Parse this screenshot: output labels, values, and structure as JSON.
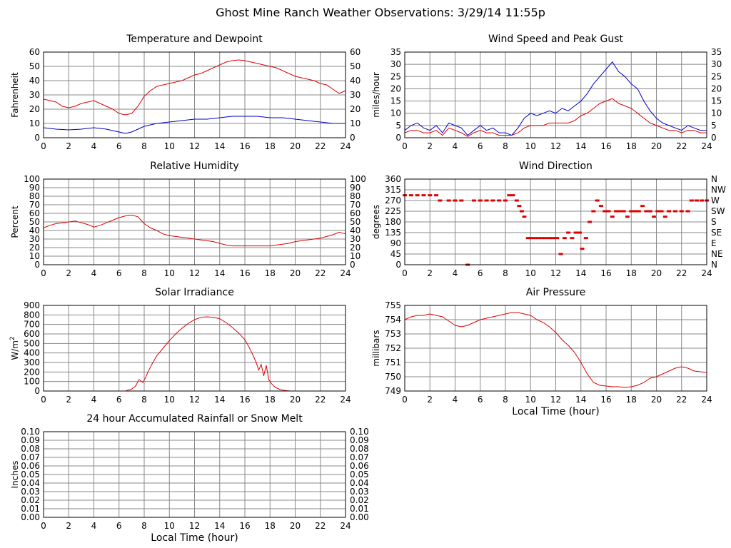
{
  "page": {
    "title": "Ghost Mine Ranch Weather Observations: 3/29/14 11:55p"
  },
  "colors": {
    "red": "#e00000",
    "blue": "#0000c8",
    "grid": "#888888",
    "frame": "#000000",
    "background": "#ffffff"
  },
  "chart_data": [
    {
      "id": "temperature",
      "type": "line",
      "title": "Temperature and Dewpoint",
      "ylabel": "Fahrenheit",
      "xlabel": "",
      "xlim": [
        0,
        24
      ],
      "ylim": [
        0,
        60
      ],
      "x_ticks": [
        "0",
        "2",
        "4",
        "6",
        "8",
        "10",
        "12",
        "14",
        "16",
        "18",
        "20",
        "22",
        "24"
      ],
      "y_ticks_left": [
        "0",
        "10",
        "20",
        "30",
        "40",
        "50",
        "60"
      ],
      "y_ticks_right": [
        "0",
        "10",
        "20",
        "30",
        "40",
        "50",
        "60"
      ],
      "grid": true,
      "series": [
        {
          "color": "#e00000",
          "x": [
            0,
            0.5,
            1,
            1.5,
            2,
            2.5,
            3,
            3.5,
            4,
            4.5,
            5,
            5.5,
            6,
            6.5,
            7,
            7.5,
            8,
            8.5,
            9,
            9.5,
            10,
            10.5,
            11,
            11.5,
            12,
            12.5,
            13,
            13.5,
            14,
            14.5,
            15,
            15.5,
            16,
            16.5,
            17,
            17.5,
            18,
            18.5,
            19,
            19.5,
            20,
            20.5,
            21,
            21.5,
            22,
            22.5,
            23,
            23.5,
            24
          ],
          "values": [
            27,
            26,
            25,
            22,
            21,
            22,
            24,
            25,
            26,
            24,
            22,
            20,
            17,
            16,
            17,
            22,
            29,
            33,
            36,
            37,
            38,
            39,
            40,
            42,
            44,
            45,
            47,
            49,
            51,
            53,
            54,
            54.5,
            54,
            53,
            52,
            51,
            50,
            49,
            47,
            45,
            43,
            42,
            41,
            40,
            38,
            37,
            34,
            31,
            33
          ]
        },
        {
          "color": "#0000c8",
          "x": [
            0,
            1,
            2,
            3,
            4,
            5,
            6,
            6.5,
            7,
            7.5,
            8,
            9,
            10,
            11,
            12,
            13,
            14,
            15,
            16,
            17,
            18,
            19,
            20,
            21,
            22,
            23,
            24
          ],
          "values": [
            7,
            6,
            5.5,
            6,
            7,
            6,
            4,
            3,
            4,
            6,
            8,
            10,
            11,
            12,
            13,
            13,
            14,
            15,
            15,
            15,
            14,
            14,
            13,
            12,
            11,
            10,
            10
          ]
        }
      ]
    },
    {
      "id": "wind-speed",
      "type": "line",
      "title": "Wind Speed and Peak Gust",
      "ylabel": "miles/hour",
      "xlabel": "",
      "xlim": [
        0,
        24
      ],
      "ylim": [
        0,
        35
      ],
      "x_ticks": [
        "0",
        "2",
        "4",
        "6",
        "8",
        "10",
        "12",
        "14",
        "16",
        "18",
        "20",
        "22",
        "24"
      ],
      "y_ticks_left": [
        "0",
        "5",
        "10",
        "15",
        "20",
        "25",
        "30",
        "35"
      ],
      "y_ticks_right": [
        "0",
        "5",
        "10",
        "15",
        "20",
        "25",
        "30",
        "35"
      ],
      "grid": true,
      "series": [
        {
          "color": "#0000c8",
          "x": [
            0,
            0.5,
            1,
            1.5,
            2,
            2.5,
            3,
            3.5,
            4,
            4.5,
            5,
            5.5,
            6,
            6.5,
            7,
            7.5,
            8,
            8.5,
            9,
            9.5,
            10,
            10.5,
            11,
            11.5,
            12,
            12.5,
            13,
            13.5,
            14,
            14.5,
            15,
            15.5,
            16,
            16.5,
            17,
            17.5,
            18,
            18.5,
            19,
            19.5,
            20,
            20.5,
            21,
            21.5,
            22,
            22.5,
            23,
            23.5,
            24
          ],
          "values": [
            3,
            5,
            6,
            4,
            3,
            5,
            2,
            6,
            5,
            4,
            1,
            3,
            5,
            3,
            4,
            2,
            2,
            1,
            4,
            8,
            10,
            9,
            10,
            11,
            10,
            12,
            11,
            13,
            15,
            18,
            22,
            25,
            28,
            31,
            27,
            25,
            22,
            20,
            15,
            11,
            8,
            6,
            5,
            4,
            3,
            5,
            4,
            3,
            3
          ]
        },
        {
          "color": "#e00000",
          "x": [
            0,
            0.5,
            1,
            1.5,
            2,
            2.5,
            3,
            3.5,
            4,
            4.5,
            5,
            5.5,
            6,
            6.5,
            7,
            7.5,
            8,
            8.5,
            9,
            9.5,
            10,
            10.5,
            11,
            11.5,
            12,
            12.5,
            13,
            13.5,
            14,
            14.5,
            15,
            15.5,
            16,
            16.5,
            17,
            17.5,
            18,
            18.5,
            19,
            19.5,
            20,
            20.5,
            21,
            21.5,
            22,
            22.5,
            23,
            23.5,
            24
          ],
          "values": [
            2,
            3,
            3,
            2,
            2,
            3,
            1,
            4,
            3,
            2,
            0.5,
            2,
            3,
            2,
            2,
            1,
            1,
            1,
            2,
            4,
            5,
            5,
            5,
            6,
            6,
            6,
            6,
            7,
            9,
            10,
            12,
            14,
            15,
            16,
            14,
            13,
            12,
            10,
            8,
            6,
            5,
            4,
            3,
            3,
            2,
            3,
            3,
            2,
            2
          ]
        }
      ]
    },
    {
      "id": "humidity",
      "type": "line",
      "title": "Relative Humidity",
      "ylabel": "Percent",
      "xlabel": "",
      "xlim": [
        0,
        24
      ],
      "ylim": [
        0,
        100
      ],
      "x_ticks": [
        "0",
        "2",
        "4",
        "6",
        "8",
        "10",
        "12",
        "14",
        "16",
        "18",
        "20",
        "22",
        "24"
      ],
      "y_ticks_left": [
        "0",
        "10",
        "20",
        "30",
        "40",
        "50",
        "60",
        "70",
        "80",
        "90",
        "100"
      ],
      "y_ticks_right": [
        "0",
        "10",
        "20",
        "30",
        "40",
        "50",
        "60",
        "70",
        "80",
        "90",
        "100"
      ],
      "grid": true,
      "series": [
        {
          "color": "#e00000",
          "x": [
            0,
            0.5,
            1,
            1.5,
            2,
            2.5,
            3,
            3.5,
            4,
            4.5,
            5,
            5.5,
            6,
            6.5,
            7,
            7.5,
            8,
            8.5,
            9,
            9.5,
            10,
            10.5,
            11,
            11.5,
            12,
            12.5,
            13,
            13.5,
            14,
            14.5,
            15,
            15.5,
            16,
            16.5,
            17,
            17.5,
            18,
            18.5,
            19,
            19.5,
            20,
            20.5,
            21,
            21.5,
            22,
            22.5,
            23,
            23.5,
            24
          ],
          "values": [
            43,
            46,
            48,
            49,
            50,
            51,
            49,
            47,
            44,
            46,
            49,
            52,
            55,
            57,
            58,
            56,
            48,
            43,
            40,
            36,
            34,
            33,
            32,
            31,
            30,
            29,
            28,
            27,
            25,
            23,
            22,
            22,
            22,
            22,
            22,
            22,
            22,
            23,
            24,
            25,
            27,
            28,
            29,
            30,
            31,
            33,
            35,
            38,
            36
          ]
        }
      ]
    },
    {
      "id": "wind-direction",
      "type": "scatter",
      "title": "Wind Direction",
      "ylabel": "degrees",
      "xlabel": "",
      "xlim": [
        0,
        24
      ],
      "ylim": [
        0,
        360
      ],
      "x_ticks": [
        "0",
        "2",
        "4",
        "6",
        "8",
        "10",
        "12",
        "14",
        "16",
        "18",
        "20",
        "22",
        "24"
      ],
      "y_ticks_left": [
        "0",
        "45",
        "90",
        "135",
        "180",
        "225",
        "270",
        "315",
        "360"
      ],
      "y_ticks_right": [
        "N",
        "NE",
        "E",
        "SE",
        "S",
        "SW",
        "W",
        "NW",
        "N"
      ],
      "grid": true,
      "series": [
        {
          "color": "#e00000",
          "x": [
            0,
            0.5,
            1,
            1.5,
            2,
            2.5,
            2.8,
            3.5,
            4,
            4.5,
            5,
            5.5,
            6,
            6.5,
            7,
            7.5,
            8,
            8.3,
            8.6,
            8.9,
            9.1,
            9.3,
            9.5,
            9.8,
            10,
            10.3,
            10.6,
            10.9,
            11.2,
            11.5,
            11.8,
            12.1,
            12.4,
            12.7,
            13,
            13.3,
            13.6,
            13.9,
            14.1,
            14.4,
            14.7,
            15,
            15.3,
            15.6,
            15.9,
            16.2,
            16.5,
            16.8,
            17.1,
            17.4,
            17.7,
            18,
            18.3,
            18.6,
            18.9,
            19.2,
            19.5,
            19.8,
            20.1,
            20.4,
            20.7,
            21,
            21.5,
            22,
            22.5,
            22.8,
            23.2,
            23.6,
            24
          ],
          "values": [
            292,
            292,
            292,
            292,
            292,
            292,
            270,
            270,
            270,
            270,
            0,
            270,
            270,
            270,
            270,
            270,
            270,
            292,
            292,
            270,
            247,
            225,
            202,
            112,
            112,
            112,
            112,
            112,
            112,
            112,
            112,
            112,
            45,
            112,
            135,
            112,
            135,
            135,
            67,
            112,
            180,
            225,
            270,
            247,
            225,
            225,
            202,
            225,
            225,
            225,
            202,
            225,
            225,
            225,
            247,
            225,
            225,
            202,
            225,
            225,
            202,
            225,
            225,
            225,
            225,
            270,
            270,
            270,
            270
          ]
        }
      ]
    },
    {
      "id": "solar",
      "type": "line",
      "title": "Solar Irradiance",
      "ylabel": "W/m",
      "ylabel_superscript": "2",
      "xlabel": "",
      "xlim": [
        0,
        24
      ],
      "ylim": [
        0,
        900
      ],
      "x_ticks": [
        "0",
        "2",
        "4",
        "6",
        "8",
        "10",
        "12",
        "14",
        "16",
        "18",
        "20",
        "22",
        "24"
      ],
      "y_ticks_left": [
        "0",
        "100",
        "200",
        "300",
        "400",
        "500",
        "600",
        "700",
        "800",
        "900"
      ],
      "y_ticks_right": [],
      "grid": true,
      "series": [
        {
          "color": "#e00000",
          "x": [
            0,
            6.5,
            7,
            7.3,
            7.6,
            7.9,
            8.1,
            8.3,
            8.6,
            9,
            9.5,
            10,
            10.5,
            11,
            11.5,
            12,
            12.5,
            13,
            13.5,
            14,
            14.5,
            15,
            15.5,
            16,
            16.3,
            16.6,
            16.9,
            17.1,
            17.3,
            17.5,
            17.7,
            17.9,
            18.1,
            18.4,
            18.8,
            19.2,
            19.6,
            20,
            24
          ],
          "values": [
            0,
            0,
            20,
            50,
            120,
            90,
            140,
            200,
            280,
            370,
            450,
            530,
            600,
            660,
            710,
            750,
            775,
            780,
            775,
            760,
            720,
            670,
            610,
            540,
            470,
            390,
            300,
            220,
            280,
            160,
            270,
            120,
            80,
            40,
            15,
            5,
            0,
            0,
            0
          ]
        }
      ]
    },
    {
      "id": "pressure",
      "type": "line",
      "title": "Air Pressure",
      "ylabel": "millibars",
      "xlabel": "Local Time (hour)",
      "xlim": [
        0,
        24
      ],
      "ylim": [
        749,
        755
      ],
      "x_ticks": [
        "0",
        "2",
        "4",
        "6",
        "8",
        "10",
        "12",
        "14",
        "16",
        "18",
        "20",
        "22",
        "24"
      ],
      "y_ticks_left": [
        "749",
        "750",
        "751",
        "752",
        "753",
        "754",
        "755"
      ],
      "y_ticks_right": [],
      "grid": true,
      "series": [
        {
          "color": "#e00000",
          "x": [
            0,
            0.5,
            1,
            1.5,
            2,
            2.5,
            3,
            3.5,
            4,
            4.5,
            5,
            5.5,
            6,
            6.5,
            7,
            7.5,
            8,
            8.5,
            9,
            9.5,
            10,
            10.5,
            11,
            11.5,
            12,
            12.5,
            13,
            13.5,
            14,
            14.5,
            15,
            15.5,
            16,
            16.5,
            17,
            17.5,
            18,
            18.5,
            19,
            19.5,
            20,
            20.5,
            21,
            21.5,
            22,
            22.5,
            23,
            23.5,
            24
          ],
          "values": [
            754.0,
            754.2,
            754.3,
            754.3,
            754.4,
            754.3,
            754.2,
            753.9,
            753.6,
            753.5,
            753.6,
            753.8,
            754.0,
            754.1,
            754.2,
            754.3,
            754.4,
            754.5,
            754.5,
            754.4,
            754.3,
            754.0,
            753.8,
            753.5,
            753.1,
            752.6,
            752.2,
            751.7,
            751.0,
            750.2,
            749.6,
            749.4,
            749.35,
            749.3,
            749.3,
            749.25,
            749.3,
            749.4,
            749.6,
            749.9,
            750.0,
            750.2,
            750.4,
            750.6,
            750.7,
            750.6,
            750.4,
            750.35,
            750.3
          ]
        }
      ]
    },
    {
      "id": "rainfall",
      "type": "line",
      "title": "24 hour Accumulated Rainfall or Snow Melt",
      "ylabel": "Inches",
      "xlabel": "Local Time (hour)",
      "xlim": [
        0,
        24
      ],
      "ylim": [
        0,
        0.1
      ],
      "x_ticks": [
        "0",
        "2",
        "4",
        "6",
        "8",
        "10",
        "12",
        "14",
        "16",
        "18",
        "20",
        "22",
        "24"
      ],
      "y_ticks_left": [
        "0.00",
        "0.01",
        "0.02",
        "0.03",
        "0.04",
        "0.05",
        "0.06",
        "0.07",
        "0.08",
        "0.09",
        "0.10"
      ],
      "y_ticks_right": [
        "0.00",
        "0.01",
        "0.02",
        "0.03",
        "0.04",
        "0.05",
        "0.06",
        "0.07",
        "0.08",
        "0.09",
        "0.10"
      ],
      "grid": true,
      "series": [
        {
          "color": "#e00000",
          "x": [
            0,
            24
          ],
          "values": [
            0,
            0
          ]
        }
      ]
    }
  ]
}
